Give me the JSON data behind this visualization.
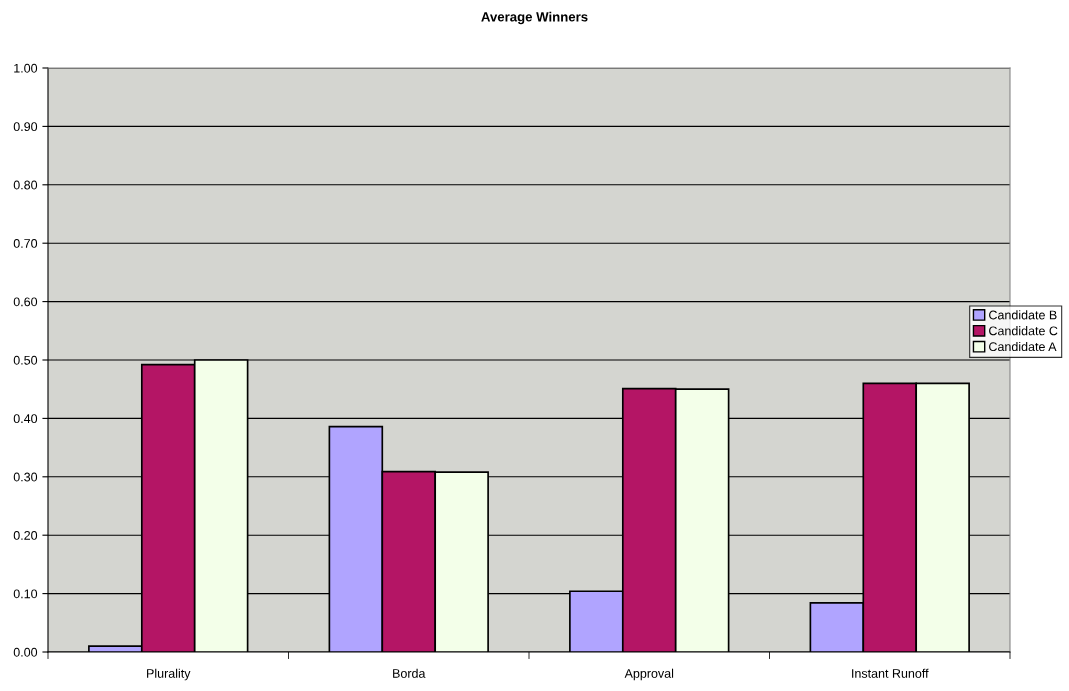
{
  "chart_data": {
    "type": "bar",
    "title": "Average Winners",
    "categories": [
      "Plurality",
      "Borda",
      "Approval",
      "Instant Runoff"
    ],
    "series": [
      {
        "name": "Candidate B",
        "color": "#b0a4ff",
        "values": [
          0.01,
          0.386,
          0.104,
          0.084
        ]
      },
      {
        "name": "Candidate C",
        "color": "#b41565",
        "values": [
          0.492,
          0.309,
          0.451,
          0.46
        ]
      },
      {
        "name": "Candidate A",
        "color": "#f3ffe9",
        "values": [
          0.5,
          0.308,
          0.45,
          0.46
        ]
      }
    ],
    "ylim": [
      0,
      1
    ],
    "yticks": [
      {
        "value": 0,
        "label": "0.00"
      },
      {
        "value": 0.1,
        "label": "0.10"
      },
      {
        "value": 0.2,
        "label": "0.20"
      },
      {
        "value": 0.3,
        "label": "0.30"
      },
      {
        "value": 0.4,
        "label": "0.40"
      },
      {
        "value": 0.5,
        "label": "0.50"
      },
      {
        "value": 0.6,
        "label": "0.60"
      },
      {
        "value": 0.7,
        "label": "0.70"
      },
      {
        "value": 0.8,
        "label": "0.80"
      },
      {
        "value": 0.9,
        "label": "0.90"
      },
      {
        "value": 1,
        "label": "1.00"
      }
    ],
    "grid": "y",
    "legend": "right"
  }
}
